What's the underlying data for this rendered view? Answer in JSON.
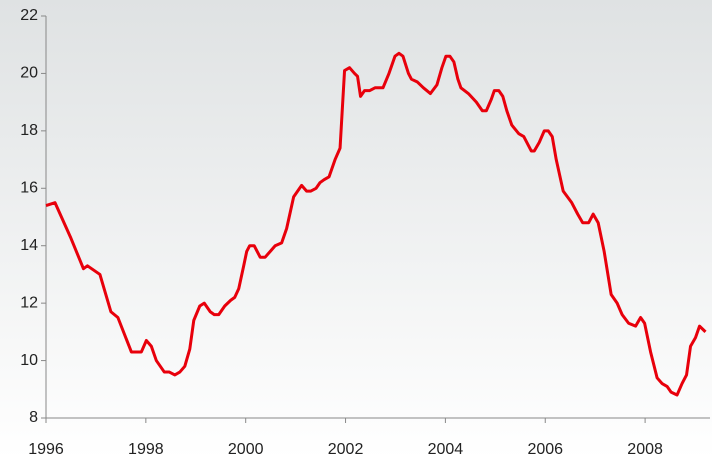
{
  "chart_data": {
    "type": "line",
    "x": [
      1996.0,
      1996.18,
      1996.49,
      1996.75,
      1996.83,
      1997.08,
      1997.3,
      1997.44,
      1997.71,
      1997.91,
      1998.01,
      1998.11,
      1998.21,
      1998.37,
      1998.47,
      1998.58,
      1998.68,
      1998.78,
      1998.88,
      1998.96,
      1999.08,
      1999.17,
      1999.29,
      1999.37,
      1999.46,
      1999.58,
      1999.7,
      1999.78,
      1999.86,
      1999.96,
      2000.02,
      2000.08,
      2000.17,
      2000.29,
      2000.39,
      2000.49,
      2000.59,
      2000.72,
      2000.82,
      2000.96,
      2001.12,
      2001.22,
      2001.3,
      2001.41,
      2001.49,
      2001.57,
      2001.67,
      2001.79,
      2001.89,
      2001.98,
      2002.08,
      2002.18,
      2002.24,
      2002.3,
      2002.38,
      2002.48,
      2002.59,
      2002.75,
      2002.87,
      2002.99,
      2003.07,
      2003.15,
      2003.26,
      2003.32,
      2003.44,
      2003.56,
      2003.7,
      2003.83,
      2003.93,
      2004.01,
      2004.09,
      2004.17,
      2004.25,
      2004.31,
      2004.46,
      2004.62,
      2004.74,
      2004.82,
      2004.92,
      2004.98,
      2005.07,
      2005.15,
      2005.23,
      2005.33,
      2005.47,
      2005.57,
      2005.63,
      2005.72,
      2005.78,
      2005.88,
      2005.98,
      2006.06,
      2006.14,
      2006.22,
      2006.36,
      2006.53,
      2006.65,
      2006.75,
      2006.87,
      2006.96,
      2007.06,
      2007.18,
      2007.32,
      2007.44,
      2007.54,
      2007.67,
      2007.81,
      2007.91,
      2007.99,
      2008.11,
      2008.24,
      2008.34,
      2008.44,
      2008.52,
      2008.64,
      2008.74,
      2008.83,
      2008.91,
      2009.01,
      2009.09,
      2009.21
    ],
    "series": [
      {
        "color": "#e8000b",
        "values": [
          15.4,
          15.5,
          14.3,
          13.2,
          13.3,
          13.0,
          11.7,
          11.5,
          10.3,
          10.3,
          10.7,
          10.5,
          10.0,
          9.6,
          9.6,
          9.5,
          9.6,
          9.8,
          10.4,
          11.4,
          11.9,
          12.0,
          11.7,
          11.6,
          11.6,
          11.9,
          12.1,
          12.2,
          12.5,
          13.3,
          13.8,
          14.0,
          14.0,
          13.6,
          13.6,
          13.8,
          14.0,
          14.1,
          14.6,
          15.7,
          16.1,
          15.9,
          15.9,
          16.0,
          16.2,
          16.3,
          16.4,
          17.0,
          17.4,
          20.1,
          20.2,
          20.0,
          19.9,
          19.2,
          19.4,
          19.4,
          19.5,
          19.5,
          20.0,
          20.6,
          20.7,
          20.6,
          20.0,
          19.8,
          19.7,
          19.5,
          19.3,
          19.6,
          20.2,
          20.6,
          20.6,
          20.4,
          19.8,
          19.5,
          19.3,
          19.0,
          18.7,
          18.7,
          19.1,
          19.4,
          19.4,
          19.2,
          18.7,
          18.2,
          17.9,
          17.8,
          17.6,
          17.3,
          17.3,
          17.6,
          18.0,
          18.0,
          17.8,
          17.0,
          15.9,
          15.5,
          15.1,
          14.8,
          14.8,
          15.1,
          14.8,
          13.8,
          12.3,
          12.0,
          11.6,
          11.3,
          11.2,
          11.5,
          11.3,
          10.3,
          9.4,
          9.2,
          9.1,
          8.9,
          8.8,
          9.2,
          9.5,
          10.5,
          10.8,
          11.2,
          11.0
        ]
      }
    ],
    "xlim": [
      1996,
      2009.3
    ],
    "xticks": [
      1996,
      1998,
      2000,
      2002,
      2004,
      2006,
      2008
    ],
    "ylim": [
      8,
      22
    ],
    "yticks": [
      8,
      10,
      12,
      14,
      16,
      18,
      20,
      22
    ]
  }
}
